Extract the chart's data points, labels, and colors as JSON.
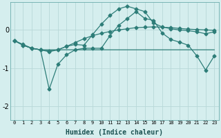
{
  "title": "",
  "xlabel": "Humidex (Indice chaleur)",
  "background_color": "#d5eeee",
  "grid_color": "#b8d8d8",
  "line_color": "#2d7d78",
  "x_values": [
    0,
    1,
    2,
    3,
    4,
    5,
    6,
    7,
    8,
    9,
    10,
    11,
    12,
    13,
    14,
    15,
    16,
    17,
    18,
    19,
    20,
    21,
    22,
    23
  ],
  "line_smooth": [
    -0.28,
    -0.38,
    -0.48,
    -0.52,
    -0.57,
    -0.52,
    -0.43,
    -0.33,
    -0.23,
    -0.15,
    -0.09,
    -0.04,
    0.0,
    0.03,
    0.06,
    0.07,
    0.08,
    0.07,
    0.06,
    0.04,
    0.02,
    0.01,
    0.0,
    -0.01
  ],
  "line_peak": [
    -0.28,
    -0.4,
    -0.48,
    -0.52,
    -0.55,
    -0.52,
    -0.43,
    -0.38,
    -0.4,
    -0.12,
    0.15,
    0.38,
    0.55,
    0.62,
    0.55,
    0.48,
    0.18,
    0.08,
    0.03,
    0.0,
    -0.02,
    -0.05,
    -0.1,
    -0.05
  ],
  "line_dip": [
    -0.28,
    -0.4,
    -0.48,
    -0.52,
    -1.55,
    -0.9,
    -0.65,
    -0.52,
    -0.48,
    -0.48,
    -0.48,
    -0.15,
    0.12,
    0.3,
    0.48,
    0.3,
    0.25,
    -0.08,
    -0.25,
    -0.32,
    -0.4,
    -0.68,
    -1.05,
    -0.68
  ],
  "line_flat": [
    -0.28,
    -0.4,
    -0.48,
    -0.52,
    -0.52,
    -0.52,
    -0.52,
    -0.52,
    -0.52,
    -0.52,
    -0.52,
    -0.52,
    -0.52,
    -0.52,
    -0.52,
    -0.52,
    -0.52,
    -0.52,
    -0.52,
    -0.52,
    -0.52,
    -0.52,
    -0.52,
    -0.52
  ],
  "ylim": [
    -2.35,
    0.72
  ],
  "yticks": [
    -2,
    -1,
    0
  ],
  "marker": "D",
  "markersize": 2.5
}
